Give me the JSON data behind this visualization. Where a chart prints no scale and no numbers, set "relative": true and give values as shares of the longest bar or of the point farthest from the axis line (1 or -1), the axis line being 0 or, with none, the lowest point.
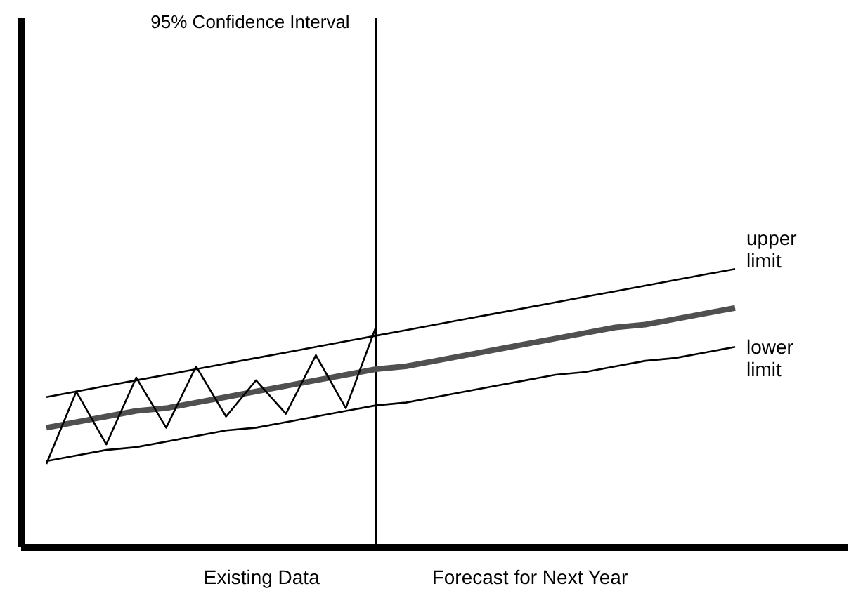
{
  "chart_data": {
    "type": "line",
    "title": "95% Confidence Interval",
    "relative": true,
    "marker": "none",
    "line_style": "solid",
    "categories": [
      null,
      null,
      null,
      null,
      null,
      null,
      null,
      null,
      null,
      null,
      null,
      null,
      null,
      null,
      null,
      null,
      null,
      null,
      null,
      null,
      null,
      null,
      null,
      null
    ],
    "annotations": [
      "Existing Data",
      "Forecast for Next Year"
    ],
    "series": [
      {
        "name": "upper limit",
        "color": "#000000",
        "values": [
          0.54,
          0.56,
          0.58,
          0.6,
          0.62,
          0.64,
          0.66,
          0.68,
          0.7,
          0.72,
          0.74,
          0.76,
          0.78,
          0.8,
          0.82,
          0.84,
          0.86,
          0.88,
          0.9,
          0.92,
          0.94,
          0.96,
          0.98,
          1.0
        ]
      },
      {
        "color": "#505050",
        "values": [
          0.43,
          0.45,
          0.47,
          0.49,
          0.5,
          0.52,
          0.54,
          0.56,
          0.58,
          0.6,
          0.62,
          0.64,
          0.65,
          0.67,
          0.69,
          0.71,
          0.73,
          0.75,
          0.77,
          0.79,
          0.8,
          0.82,
          0.84,
          0.86
        ]
      },
      {
        "name": "lower limit",
        "color": "#000000",
        "values": [
          0.31,
          0.33,
          0.35,
          0.36,
          0.38,
          0.4,
          0.42,
          0.43,
          0.45,
          0.47,
          0.49,
          0.51,
          0.52,
          0.54,
          0.56,
          0.58,
          0.6,
          0.62,
          0.63,
          0.65,
          0.67,
          0.68,
          0.7,
          0.72
        ]
      },
      {
        "color": "#000000",
        "values": [
          0.3,
          0.56,
          0.37,
          0.61,
          0.43,
          0.65,
          0.47,
          0.6,
          0.48,
          0.69,
          0.5,
          0.79,
          null,
          null,
          null,
          null,
          null,
          null,
          null,
          null,
          null,
          null,
          null,
          null
        ]
      }
    ]
  }
}
